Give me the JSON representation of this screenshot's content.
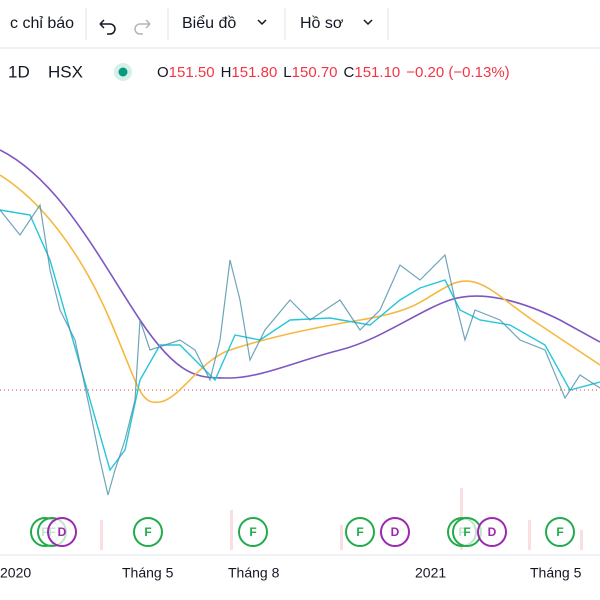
{
  "toolbar": {
    "indicators": "c chỉ báo",
    "chart": "Biểu đồ",
    "profile": "Hồ sơ"
  },
  "legend": {
    "interval": "1D",
    "exchange": "HSX",
    "ohlc": [
      {
        "label": "O",
        "value": "151.50"
      },
      {
        "label": "H",
        "value": "151.80"
      },
      {
        "label": "L",
        "value": "150.70"
      },
      {
        "label": "C",
        "value": "151.10"
      }
    ],
    "change": "−0.20 (−0.13%)"
  },
  "x_axis": [
    "2020",
    "Tháng 5",
    "Tháng 8",
    "2021",
    "Tháng 5"
  ],
  "events": [
    "F",
    "F",
    "D",
    "F",
    "F",
    "F",
    "D",
    "F",
    "F",
    "D",
    "F"
  ]
}
